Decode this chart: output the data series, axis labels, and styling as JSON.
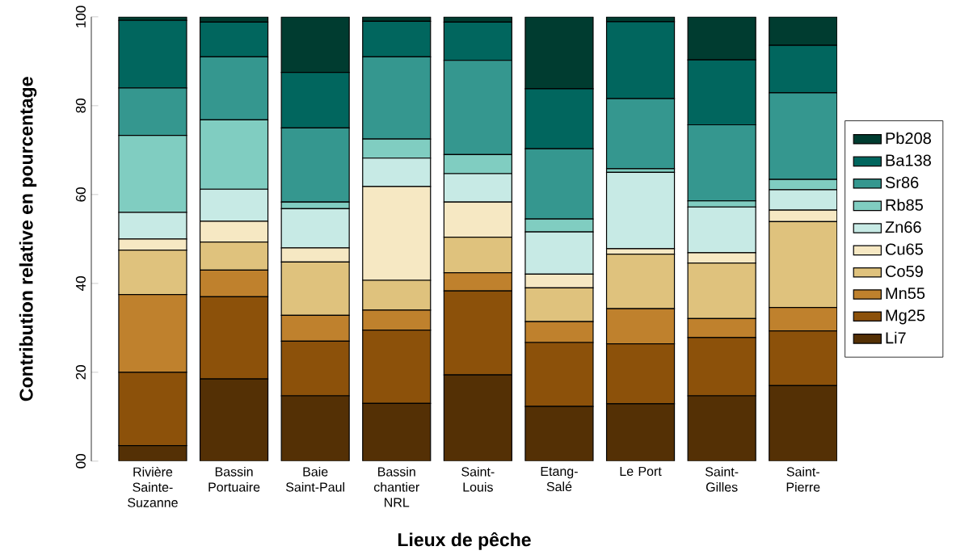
{
  "chart_data": {
    "type": "bar",
    "stacked": true,
    "xlabel": "Lieux de pêche",
    "ylabel": "Contribution relative en pourcentage",
    "categories": [
      "Rivière Sainte-Suzanne",
      "Bassin Portuaire",
      "Baie Saint-Paul",
      "Bassin chantier NRL",
      "Saint-Louis",
      "Etang-Salé",
      "Le Port",
      "Saint-Gilles",
      "Saint-Pierre"
    ],
    "series": [
      {
        "name": "Li7",
        "color": "#543005",
        "values": [
          3.5,
          18.5,
          14.7,
          13,
          19.4,
          12.3,
          12.9,
          14.7,
          17
        ]
      },
      {
        "name": "Mg25",
        "color": "#8c510a",
        "values": [
          16.5,
          18.5,
          12.3,
          16.5,
          18.9,
          14.4,
          13.5,
          13.1,
          12.3
        ]
      },
      {
        "name": "Mn55",
        "color": "#bf812d",
        "values": [
          17.5,
          6,
          5.8,
          4.5,
          4.1,
          4.7,
          7.9,
          4.3,
          5.3
        ]
      },
      {
        "name": "Co59",
        "color": "#dfc27d",
        "values": [
          10,
          6.3,
          12,
          6.7,
          8,
          7.6,
          12.3,
          12.5,
          19.3
        ]
      },
      {
        "name": "Cu65",
        "color": "#f6e8c3",
        "values": [
          2.5,
          4.7,
          3.2,
          21.1,
          7.9,
          3.1,
          1.2,
          2.3,
          2.6
        ]
      },
      {
        "name": "Zn66",
        "color": "#c7eae5",
        "values": [
          6,
          7.2,
          8.8,
          6.4,
          6.4,
          9.5,
          17.2,
          10.3,
          4.6
        ]
      },
      {
        "name": "Rb85",
        "color": "#80cdc1",
        "values": [
          17.3,
          15.6,
          1.5,
          4.3,
          4.3,
          2.9,
          0.8,
          1.4,
          2.3
        ]
      },
      {
        "name": "Sr86",
        "color": "#35978f",
        "values": [
          10.7,
          14.2,
          16.7,
          18.5,
          21.2,
          15.8,
          15.8,
          17.1,
          19.5
        ]
      },
      {
        "name": "Ba138",
        "color": "#01665e",
        "values": [
          15.2,
          7.8,
          12.5,
          8,
          8.6,
          13.5,
          17.3,
          14.6,
          10.7
        ]
      },
      {
        "name": "Pb208",
        "color": "#003c30",
        "values": [
          0.8,
          1.2,
          12.5,
          1,
          1.2,
          16.2,
          1.1,
          9.7,
          6.4
        ]
      }
    ],
    "ylim": [
      0,
      100
    ],
    "yticks": [
      {
        "value": 0,
        "label": "00"
      },
      20,
      40,
      60,
      80,
      100
    ],
    "legend": "right"
  }
}
